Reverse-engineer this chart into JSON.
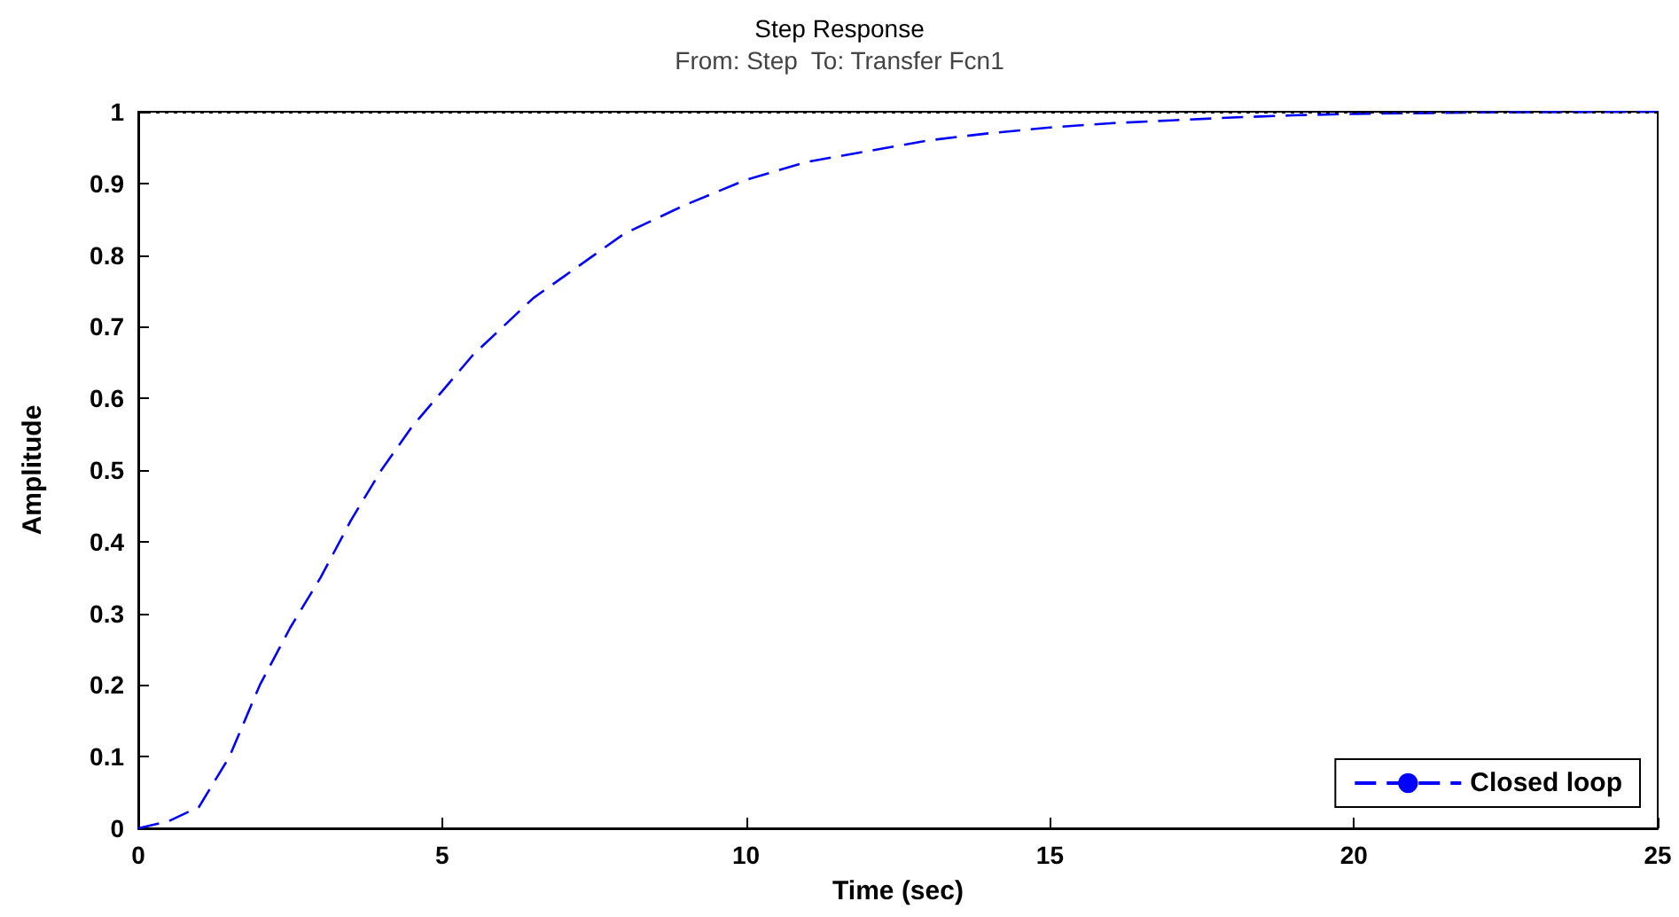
{
  "chart_data": {
    "type": "line",
    "title": "Step Response",
    "subtitle": "From: Step  To: Transfer Fcn1",
    "xlabel": "Time (sec)",
    "ylabel": "Amplitude",
    "xlim": [
      0,
      25
    ],
    "ylim": [
      0,
      1
    ],
    "xticks": [
      0,
      5,
      10,
      15,
      20,
      25
    ],
    "yticks": [
      0,
      0.1,
      0.2,
      0.3,
      0.4,
      0.5,
      0.6,
      0.7,
      0.8,
      0.9,
      1
    ],
    "grid": false,
    "legend": "bottom right",
    "marker": "none",
    "line_style": "dashed",
    "ref_lines": [
      {
        "axis": "y",
        "value": 1,
        "color": "#000000",
        "line_style": "dotted"
      }
    ],
    "series": [
      {
        "name": "Closed loop",
        "color": "#0000ff",
        "x": [
          0,
          0.5,
          1,
          1.5,
          2,
          2.5,
          3,
          3.5,
          4,
          4.5,
          5,
          5.5,
          6,
          6.5,
          7,
          7.5,
          8,
          9,
          10,
          11,
          12,
          13,
          14,
          15,
          16,
          17,
          18,
          19,
          20,
          22,
          25
        ],
        "values": [
          0,
          0.01,
          0.03,
          0.1,
          0.2,
          0.28,
          0.35,
          0.43,
          0.5,
          0.56,
          0.61,
          0.66,
          0.7,
          0.74,
          0.77,
          0.8,
          0.83,
          0.87,
          0.905,
          0.93,
          0.945,
          0.96,
          0.97,
          0.978,
          0.984,
          0.988,
          0.992,
          0.995,
          0.997,
          0.999,
          1
        ]
      }
    ]
  }
}
